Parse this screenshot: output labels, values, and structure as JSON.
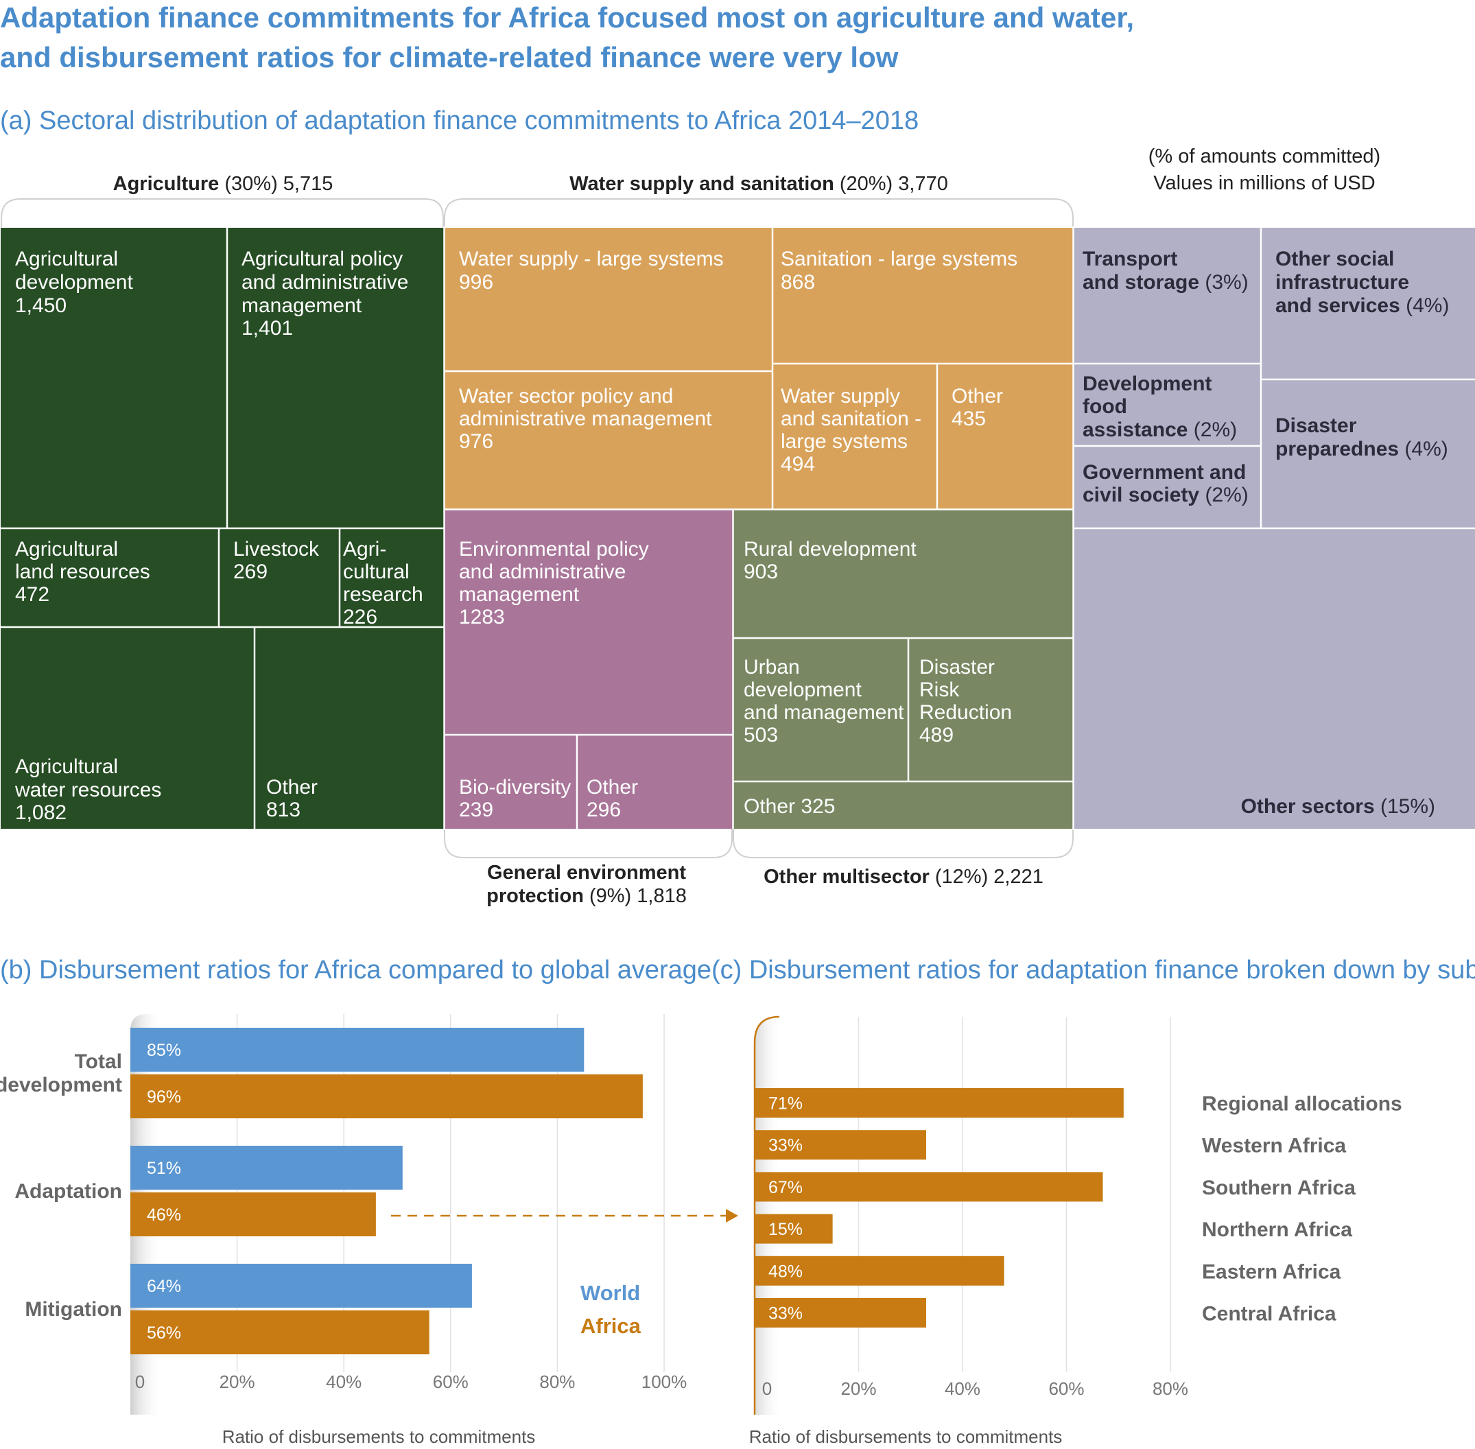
{
  "title": {
    "line1": "Adaptation finance commitments for Africa focused most on agriculture and water,",
    "line2": "and disbursement ratios for climate-related finance were very low"
  },
  "panel_a": {
    "title": "(a) Sectoral distribution of adaptation finance commitments to Africa 2014–2018",
    "note_line1": "(% of amounts committed)",
    "note_line2": "Values in millions of USD",
    "groups": {
      "agriculture": {
        "name": "Agriculture",
        "rest": " (30%) 5,715"
      },
      "water": {
        "name": "Water supply and sanitation",
        "rest": " (20%) 3,770"
      },
      "environment": {
        "name_line1": "General environment",
        "name_line2": "protection",
        "rest": " (9%) 1,818"
      },
      "multisector": {
        "name": "Other multisector",
        "rest": " (12%) 2,221"
      }
    },
    "colors": {
      "agriculture": "#264d24",
      "water": "#d9a25b",
      "environment": "#a97699",
      "multisector": "#798863",
      "other": "#b1b0c6"
    },
    "cells": {
      "agri_dev": [
        "Agricultural",
        "development",
        "1,450"
      ],
      "agri_policy": [
        "Agricultural policy",
        "and administrative",
        "management",
        "1,401"
      ],
      "agri_land": [
        "Agricultural",
        "land resources",
        "472"
      ],
      "livestock": [
        "Livestock",
        "269"
      ],
      "agri_research": [
        "Agri-",
        "cultural",
        "research",
        "226"
      ],
      "agri_water": [
        "Agricultural",
        "water resources",
        "1,082"
      ],
      "agri_other": [
        "Other",
        "813"
      ],
      "water_large": [
        "Water supply - large systems",
        "996"
      ],
      "sanitation_large": [
        "Sanitation - large systems",
        "868"
      ],
      "water_policy": [
        "Water sector policy and",
        "administrative management",
        "976"
      ],
      "water_sanit_large": [
        "Water supply",
        "and sanitation -",
        "large systems",
        "494"
      ],
      "water_other": [
        "Other",
        "435"
      ],
      "env_policy": [
        "Environmental policy",
        "and administrative",
        "management",
        "1283"
      ],
      "biodiversity": [
        "Bio-diversity",
        "239"
      ],
      "env_other": [
        "Other",
        "296"
      ],
      "rural_dev": [
        "Rural development",
        "903"
      ],
      "urban_dev": [
        "Urban",
        "development",
        "and management",
        "503"
      ],
      "drr": [
        "Disaster",
        "Risk",
        "Reduction",
        "489"
      ],
      "multi_other": [
        "Other 325"
      ],
      "transport": {
        "l1": "Transport",
        "l2": "and storage",
        "pct": " (3%)"
      },
      "other_social": {
        "l1": "Other social",
        "l2": "infrastructure",
        "l3": "and services",
        "pct": " (4%)"
      },
      "food_assist": {
        "l1": "Development",
        "l2": "food",
        "l3": "assistance",
        "pct": " (2%)"
      },
      "gov_civil": {
        "l1": "Government and",
        "l2": "civil society",
        "pct": " (2%)"
      },
      "disaster_prep": {
        "l1": "Disaster",
        "l2": "preparednes",
        "pct": " (4%)"
      },
      "other_sectors": {
        "l1": "Other sectors",
        "pct": " (15%)"
      }
    }
  },
  "chart_data": [
    {
      "type": "bar",
      "title": "(b) Disbursement ratios for Africa compared to global average",
      "categories": [
        "Total development",
        "Adaptation",
        "Mitigation"
      ],
      "category_lines": [
        [
          "Total",
          "development"
        ],
        [
          "Adaptation"
        ],
        [
          "Mitigation"
        ]
      ],
      "series": [
        {
          "name": "World",
          "values": [
            85,
            51,
            64
          ],
          "labels": [
            "85%",
            "51%",
            "64%"
          ],
          "color": "#5a96d2"
        },
        {
          "name": "Africa",
          "values": [
            96,
            46,
            56
          ],
          "labels": [
            "96%",
            "46%",
            "56%"
          ],
          "color": "#c77b12"
        }
      ],
      "xlim": [
        0,
        100
      ],
      "ticks": [
        0,
        20,
        40,
        60,
        80,
        100
      ],
      "tick_labels": [
        "0",
        "20%",
        "40%",
        "60%",
        "80%",
        "100%"
      ],
      "xlabel": "Ratio of disbursements to commitments",
      "orientation": "horizontal",
      "grid": true
    },
    {
      "type": "bar",
      "title": "(c) Disbursement ratios for adaptation finance broken down by sub-region",
      "categories": [
        "Regional allocations",
        "Western Africa",
        "Southern Africa",
        "Northern Africa",
        "Eastern Africa",
        "Central Africa"
      ],
      "values": [
        71,
        33,
        67,
        15,
        48,
        33
      ],
      "labels": [
        "71%",
        "33%",
        "67%",
        "15%",
        "48%",
        "33%"
      ],
      "color": "#c77b12",
      "xlim": [
        0,
        80
      ],
      "ticks": [
        0,
        20,
        40,
        60,
        80
      ],
      "tick_labels": [
        "0",
        "20%",
        "40%",
        "60%",
        "80%"
      ],
      "xlabel": "Ratio of disbursements to commitments",
      "orientation": "horizontal",
      "grid": true
    }
  ]
}
